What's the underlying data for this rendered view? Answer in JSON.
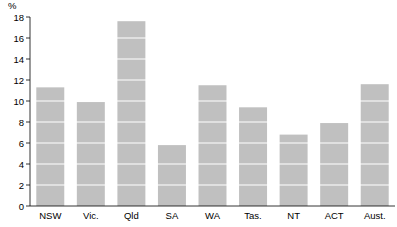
{
  "chart_data": {
    "type": "bar",
    "y_label": "%",
    "categories": [
      "NSW",
      "Vic.",
      "Qld",
      "SA",
      "WA",
      "Tas.",
      "NT",
      "ACT",
      "Aust."
    ],
    "values": [
      11.3,
      9.9,
      17.6,
      5.8,
      11.5,
      9.4,
      6.8,
      7.9,
      11.6
    ],
    "color": "#c0c0c0",
    "ylim": [
      0,
      18
    ],
    "yticks": [
      0,
      2,
      4,
      6,
      8,
      10,
      12,
      14,
      16,
      18
    ],
    "grid": true
  }
}
